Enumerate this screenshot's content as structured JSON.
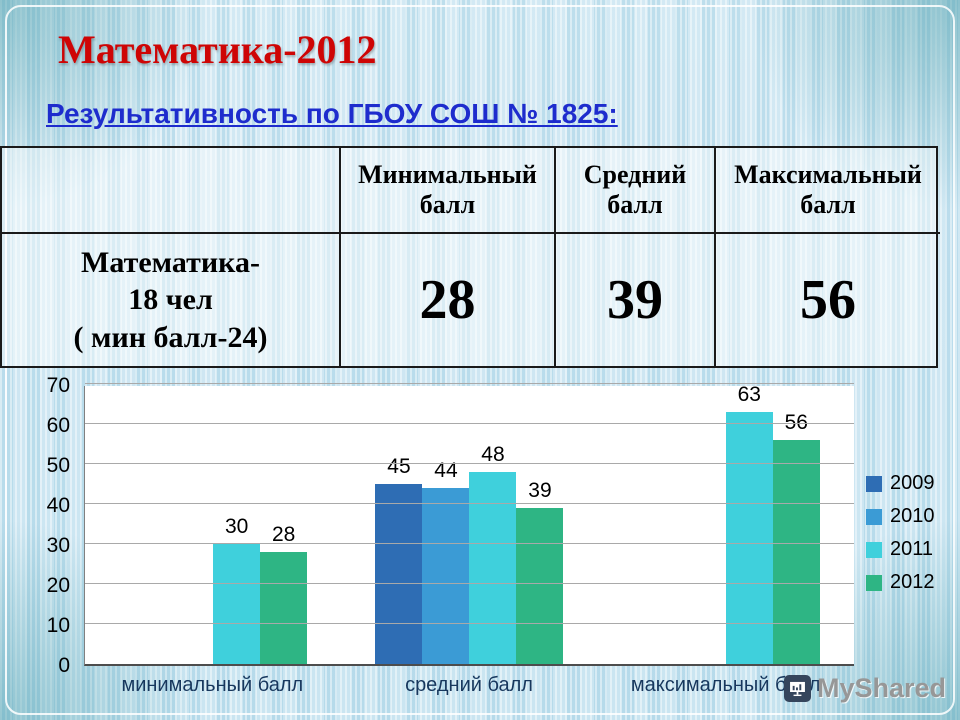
{
  "slide": {
    "title": "Математика-2012",
    "subtitle": "Результативность по ГБОУ СОШ № 1825:",
    "colors": {
      "title": "#ce0505",
      "subtitle": "#1e2ccd"
    }
  },
  "table": {
    "col_headers": [
      "Минимальный балл",
      "Средний балл",
      "Максимальный балл"
    ],
    "row_label": "Математика-\n18 чел\n( мин балл-24)",
    "values": [
      "28",
      "39",
      "56"
    ]
  },
  "chart_data": {
    "type": "bar",
    "title": "",
    "categories": [
      "минимальный балл",
      "средний балл",
      "максимальный балл"
    ],
    "series": [
      {
        "name": "2009",
        "color": "#2e6db4",
        "values": [
          null,
          45,
          null
        ]
      },
      {
        "name": "2010",
        "color": "#3b9bd5",
        "values": [
          null,
          44,
          null
        ]
      },
      {
        "name": "2011",
        "color": "#3fd0dc",
        "values": [
          30,
          48,
          63
        ]
      },
      {
        "name": "2012",
        "color": "#2eb584",
        "values": [
          28,
          39,
          56
        ]
      }
    ],
    "ylim": [
      0,
      70
    ],
    "ytick_step": 10,
    "grid": true,
    "legend_position": "right"
  },
  "watermark": {
    "label": "MyShared"
  }
}
